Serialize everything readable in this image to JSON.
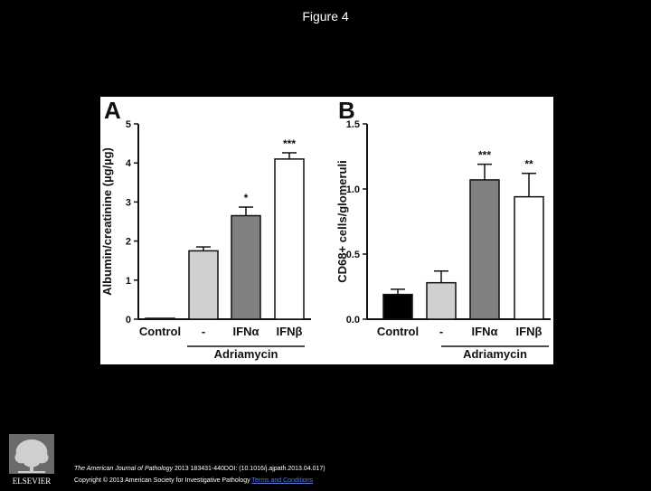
{
  "slide": {
    "title": "Figure 4"
  },
  "chart_data": [
    {
      "panel_letter": "A",
      "type": "bar",
      "ylabel": "Albumin/creatinine (µg/µg)",
      "ylim": [
        0,
        5
      ],
      "yticks": [
        "0",
        "1",
        "2",
        "3",
        "4",
        "5"
      ],
      "yticks_values": [
        0,
        1,
        2,
        3,
        4,
        5
      ],
      "categories": [
        "Control",
        "-",
        "IFNα",
        "IFNβ"
      ],
      "values": [
        0.02,
        1.75,
        2.65,
        4.1
      ],
      "errors": [
        0,
        0.1,
        0.22,
        0.16
      ],
      "significance": [
        "",
        "",
        "*",
        "***"
      ],
      "bar_colors": [
        "#ffffff",
        "#d0d0d0",
        "#808080",
        "#ffffff"
      ],
      "group_label": "Adriamycin",
      "grid": false
    },
    {
      "panel_letter": "B",
      "type": "bar",
      "ylabel": "CD68+ cells/glomeruli",
      "ylim": [
        0,
        1.5
      ],
      "yticks": [
        "0.0",
        "0.5",
        "1.0",
        "1.5"
      ],
      "yticks_values": [
        0,
        0.5,
        1.0,
        1.5
      ],
      "categories": [
        "Control",
        "-",
        "IFNα",
        "IFNβ"
      ],
      "values": [
        0.19,
        0.28,
        1.07,
        0.94
      ],
      "errors": [
        0.04,
        0.09,
        0.12,
        0.18
      ],
      "significance": [
        "",
        "",
        "***",
        "**"
      ],
      "bar_colors": [
        "#000000",
        "#d0d0d0",
        "#808080",
        "#ffffff"
      ],
      "group_label": "Adriamycin",
      "grid": false
    }
  ],
  "footer": {
    "journal": "The American Journal of Pathology",
    "citation": " 2013 183431-440DOI: (10.1016/j.ajpath.2013.04.017)",
    "copyright": "Copyright © 2013 American Society for Investigative Pathology ",
    "terms_link": "Terms and Conditions",
    "logo_text": "ELSEVIER"
  }
}
